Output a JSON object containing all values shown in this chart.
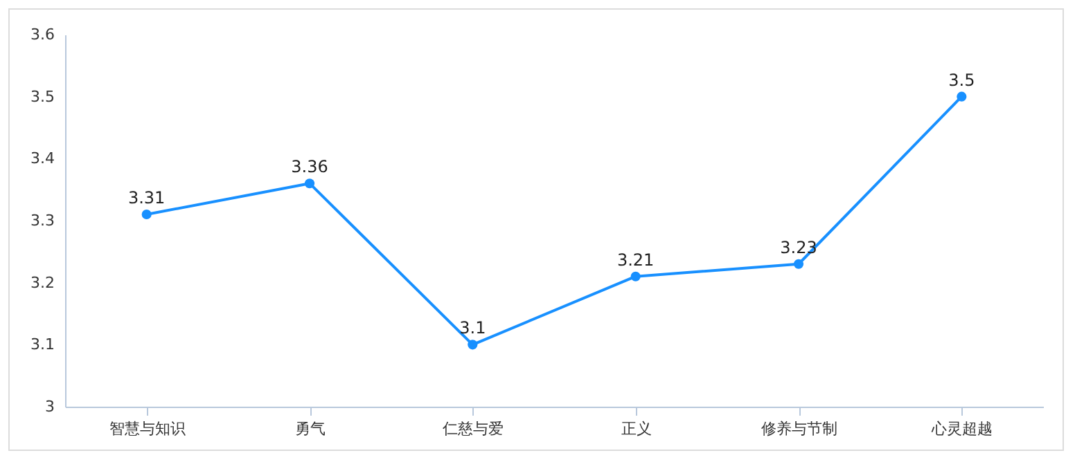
{
  "chart_data": {
    "type": "line",
    "categories": [
      "智慧与知识",
      "勇气",
      "仁慈与爱",
      "正义",
      "修养与节制",
      "心灵超越"
    ],
    "series": [
      {
        "color": "#1890ff",
        "values": [
          3.31,
          3.36,
          3.1,
          3.21,
          3.23,
          3.5
        ]
      }
    ],
    "ylim": [
      3,
      3.6
    ],
    "yticks": [
      3,
      3.1,
      3.2,
      3.3,
      3.4,
      3.5,
      3.6
    ],
    "grid": false,
    "legend": false,
    "marker": "circle",
    "line_style": "solid",
    "data_labels": true
  }
}
